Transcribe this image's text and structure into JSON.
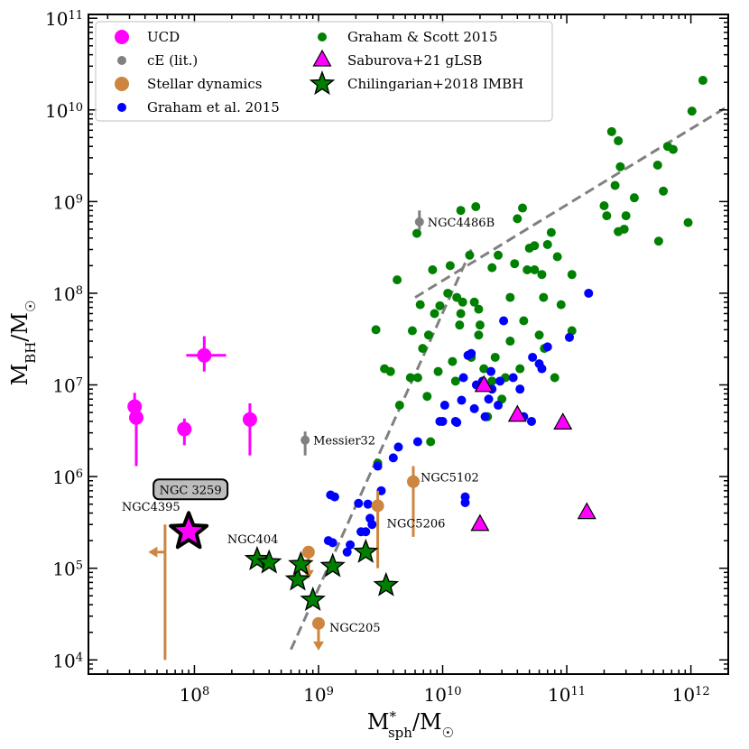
{
  "chart_data": {
    "type": "scatter",
    "xscale": "log",
    "yscale": "log",
    "xlim": [
      14000000,
      2000000000000
    ],
    "ylim": [
      7000,
      110000000000
    ],
    "xlabel": {
      "base": "M",
      "sup": "*",
      "sub": "sph",
      "slash": "/M",
      "sun": "☉"
    },
    "ylabel": {
      "base": "M",
      "sub": "BH",
      "slash": "/M",
      "sun": "☉"
    },
    "x_ticks": [
      {
        "value": 100000000,
        "base": "10",
        "exp": "8"
      },
      {
        "value": 1000000000,
        "base": "10",
        "exp": "9"
      },
      {
        "value": 10000000000,
        "base": "10",
        "exp": "10"
      },
      {
        "value": 100000000000,
        "base": "10",
        "exp": "11"
      },
      {
        "value": 1000000000000,
        "base": "10",
        "exp": "12"
      }
    ],
    "y_ticks": [
      {
        "value": 10000,
        "base": "10",
        "exp": "4"
      },
      {
        "value": 100000,
        "base": "10",
        "exp": "5"
      },
      {
        "value": 1000000,
        "base": "10",
        "exp": "6"
      },
      {
        "value": 10000000,
        "base": "10",
        "exp": "7"
      },
      {
        "value": 100000000,
        "base": "10",
        "exp": "8"
      },
      {
        "value": 1000000000,
        "base": "10",
        "exp": "9"
      },
      {
        "value": 10000000000,
        "base": "10",
        "exp": "10"
      },
      {
        "value": 100000000000,
        "base": "10",
        "exp": "11"
      }
    ],
    "legend": [
      {
        "label": "UCD",
        "marker": "circle",
        "color": "#ff00ff"
      },
      {
        "label": "cE (lit.)",
        "marker": "dot",
        "color": "#808080"
      },
      {
        "label": "Stellar dynamics",
        "marker": "circle",
        "color": "#cd853f"
      },
      {
        "label": "Graham et al. 2015",
        "marker": "dot",
        "color": "#0000ff"
      },
      {
        "label": "Graham & Scott 2015",
        "marker": "dot",
        "color": "#008000"
      },
      {
        "label": "Saburova+21 gLSB",
        "marker": "triangle",
        "color": "#ff00ff"
      },
      {
        "label": "Chilingarian+2018 IMBH",
        "marker": "star",
        "color": "#008000"
      }
    ],
    "fit_lines": [
      {
        "name": "steep-relation",
        "points": [
          [
            600000000,
            13000
          ],
          [
            17000000000,
            300000000
          ]
        ],
        "color": "#808080"
      },
      {
        "name": "shallow-relation",
        "points": [
          [
            6000000000,
            90000000
          ],
          [
            2000000000000,
            11000000000
          ]
        ],
        "color": "#808080"
      }
    ],
    "ucd": [
      {
        "x": 33000000,
        "y": 5800000,
        "yerr_lo": 4300000,
        "yerr_hi": 8200000
      },
      {
        "x": 34000000,
        "y": 4400000,
        "yerr_lo": 1300000,
        "yerr_hi": 5800000
      },
      {
        "x": 83000000,
        "y": 3300000,
        "yerr_lo": 2200000,
        "yerr_hi": 4300000
      },
      {
        "x": 120000000,
        "y": 21000000,
        "yerr_lo": 14000000,
        "yerr_hi": 34000000,
        "xerr_lo": 86000000,
        "xerr_hi": 180000000
      },
      {
        "x": 280000000,
        "y": 4200000,
        "yerr_lo": 1700000,
        "yerr_hi": 6300000
      }
    ],
    "ce": [
      {
        "x": 780000000,
        "y": 2500000,
        "yerr_lo": 1700000,
        "yerr_hi": 3100000,
        "label": "Messier32"
      },
      {
        "x": 6500000000,
        "y": 600000000,
        "yerr_lo": 490000000,
        "yerr_hi": 800000000,
        "label": "NGC4486B"
      }
    ],
    "stellar_dynamics": [
      {
        "x": 58000000,
        "y": 300000,
        "upper_limit_y": 10000,
        "upper_limit_x": 44000000,
        "label": "NGC4395"
      },
      {
        "x": 830000000,
        "y": 150000,
        "upper_limit": true,
        "label": "NGC404"
      },
      {
        "x": 1000000000,
        "y": 25000,
        "upper_limit": true,
        "label": "NGC205"
      },
      {
        "x": 3000000000,
        "y": 480000,
        "yerr_lo": 100000,
        "yerr_hi": 700000,
        "label": "NGC5206"
      },
      {
        "x": 5800000000,
        "y": 880000,
        "yerr_lo": 220000,
        "yerr_hi": 1300000,
        "label": "NGC5102"
      }
    ],
    "target": {
      "x": 90000000,
      "y": 250000,
      "label": "NGC 3259"
    },
    "graham_scott_2015": [
      [
        3000000000,
        1400000
      ],
      [
        2900000000,
        40000000
      ],
      [
        3400000000,
        15000000
      ],
      [
        3800000000,
        14000000
      ],
      [
        4500000000,
        6000000
      ],
      [
        4300000000,
        140000000
      ],
      [
        5700000000,
        39000000
      ],
      [
        5500000000,
        12000000
      ],
      [
        6300000000,
        12000000
      ],
      [
        6600000000,
        75000000
      ],
      [
        6900000000,
        25000000
      ],
      [
        7500000000,
        7500000
      ],
      [
        7700000000,
        35000000
      ],
      [
        8300000000,
        180000000
      ],
      [
        8000000000,
        2400000
      ],
      [
        8600000000,
        60000000
      ],
      [
        9200000000,
        14000000
      ],
      [
        9500000000,
        73000000
      ],
      [
        6200000000,
        450000000
      ],
      [
        11000000000,
        100000000
      ],
      [
        11500000000,
        200000000
      ],
      [
        12000000000,
        18000000
      ],
      [
        12700000000,
        11000000
      ],
      [
        13000000000,
        90000000
      ],
      [
        14000000000,
        60000000
      ],
      [
        14500000000,
        80000000
      ],
      [
        13700000000,
        45000000
      ],
      [
        14000000000,
        800000000
      ],
      [
        16500000000,
        260000000
      ],
      [
        17000000000,
        20000000
      ],
      [
        18000000000,
        80000000
      ],
      [
        18500000000,
        880000000
      ],
      [
        19500000000,
        35000000
      ],
      [
        19500000000,
        67000000
      ],
      [
        20000000000,
        45000000
      ],
      [
        21500000000,
        15000000
      ],
      [
        23000000000,
        4500000
      ],
      [
        25000000000,
        11000000
      ],
      [
        25000000000,
        190000000
      ],
      [
        26500000000,
        20000000
      ],
      [
        28000000000,
        260000000
      ],
      [
        30000000000,
        7000000
      ],
      [
        32000000000,
        12000000
      ],
      [
        35000000000,
        90000000
      ],
      [
        35000000000,
        30000000
      ],
      [
        38000000000,
        210000000
      ],
      [
        40000000000,
        650000000
      ],
      [
        42000000000,
        15000000
      ],
      [
        44000000000,
        850000000
      ],
      [
        45000000000,
        50000000
      ],
      [
        48000000000,
        180000000
      ],
      [
        50000000000,
        310000000
      ],
      [
        55000000000,
        330000000
      ],
      [
        55000000000,
        180000000
      ],
      [
        60000000000,
        35000000
      ],
      [
        63000000000,
        160000000
      ],
      [
        65000000000,
        90000000
      ],
      [
        66000000000,
        25000000
      ],
      [
        70000000000,
        340000000
      ],
      [
        75000000000,
        460000000
      ],
      [
        80000000000,
        12000000
      ],
      [
        84000000000,
        250000000
      ],
      [
        90000000000,
        75000000
      ],
      [
        110000000000,
        160000000
      ],
      [
        110000000000,
        39000000
      ],
      [
        200000000000,
        900000000
      ],
      [
        210000000000,
        700000000
      ],
      [
        230000000000,
        5800000000
      ],
      [
        245000000000,
        1500000000
      ],
      [
        260000000000,
        4600000000
      ],
      [
        270000000000,
        2400000000
      ],
      [
        300000000000,
        700000000
      ],
      [
        290000000000,
        500000000
      ],
      [
        350000000000,
        1100000000
      ],
      [
        540000000000,
        2500000000
      ],
      [
        550000000000,
        370000000
      ],
      [
        600000000000,
        1300000000
      ],
      [
        650000000000,
        4000000000
      ],
      [
        720000000000,
        3700000000
      ],
      [
        950000000000,
        590000000
      ],
      [
        1020000000000,
        9700000000
      ],
      [
        1250000000000,
        21000000000
      ],
      [
        260000000000,
        470000000
      ]
    ],
    "graham_2015": [
      [
        1200000000,
        200000
      ],
      [
        1300000000,
        190000
      ],
      [
        1250000000,
        630000
      ],
      [
        1350000000,
        600000
      ],
      [
        1700000000,
        150000
      ],
      [
        1800000000,
        180000
      ],
      [
        2100000000,
        510000
      ],
      [
        2200000000,
        250000
      ],
      [
        2400000000,
        250000
      ],
      [
        2500000000,
        500000
      ],
      [
        2600000000,
        350000
      ],
      [
        2700000000,
        300000
      ],
      [
        3000000000,
        1300000
      ],
      [
        3200000000,
        700000
      ],
      [
        4000000000,
        1600000
      ],
      [
        4400000000,
        2100000
      ],
      [
        6300000000,
        2400000
      ],
      [
        9500000000,
        4000000
      ],
      [
        10000000000,
        4000000
      ],
      [
        10400000000,
        6000000
      ],
      [
        12700000000,
        4000000
      ],
      [
        13000000000,
        3900000
      ],
      [
        14200000000,
        6800000
      ],
      [
        14700000000,
        12000000
      ],
      [
        15200000000,
        520000
      ],
      [
        15200000000,
        600000
      ],
      [
        16000000000,
        21000000
      ],
      [
        17000000000,
        22000000
      ],
      [
        18000000000,
        5500000
      ],
      [
        18700000000,
        10000000
      ],
      [
        21000000000,
        11000000
      ],
      [
        22000000000,
        4500000
      ],
      [
        23500000000,
        7000000
      ],
      [
        24500000000,
        14000000
      ],
      [
        25000000000,
        9000000
      ],
      [
        28000000000,
        6000000
      ],
      [
        29000000000,
        11000000
      ],
      [
        31000000000,
        50000000
      ],
      [
        37000000000,
        12000000
      ],
      [
        42000000000,
        9000000
      ],
      [
        45000000000,
        4500000
      ],
      [
        52000000000,
        4000000
      ],
      [
        53000000000,
        20000000
      ],
      [
        60000000000,
        17000000
      ],
      [
        63000000000,
        15000000
      ],
      [
        70000000000,
        26000000
      ],
      [
        105000000000,
        33000000
      ],
      [
        150000000000,
        100000000
      ]
    ],
    "saburova_2021_glsb": [
      [
        21500000000,
        9500000
      ],
      [
        20000000000,
        290000
      ],
      [
        40000000000,
        4500000
      ],
      [
        93000000000,
        3700000
      ],
      [
        145000000000,
        390000
      ]
    ],
    "chilingarian_2018_imbh": [
      [
        320000000,
        125000
      ],
      [
        400000000,
        115000
      ],
      [
        680000000,
        75000
      ],
      [
        720000000,
        110000
      ],
      [
        900000000,
        45000
      ],
      [
        1300000000,
        105000
      ],
      [
        2400000000,
        150000
      ],
      [
        3500000000,
        65000
      ]
    ]
  }
}
